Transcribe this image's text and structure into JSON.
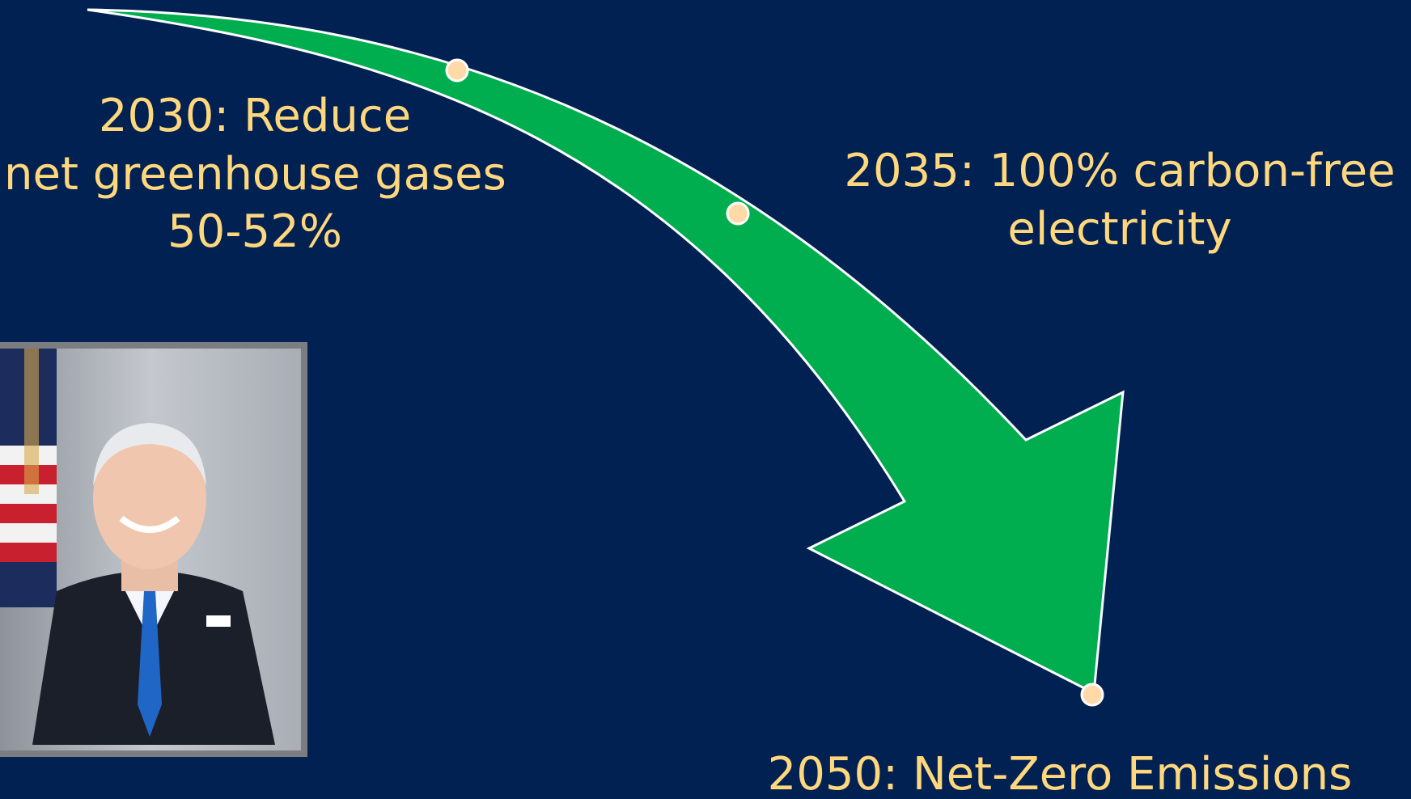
{
  "milestones": [
    {
      "lines": [
        "2030: Reduce",
        "net greenhouse gases",
        "50-52%"
      ]
    },
    {
      "lines": [
        "2035: 100%  carbon-free",
        "electricity"
      ]
    },
    {
      "lines": [
        "2050: Net-Zero Emissions"
      ]
    }
  ],
  "colors": {
    "background": "#012152",
    "arrow_fill": "#00ad4f",
    "arrow_outline": "#ffffff",
    "marker": "#ffd9a8",
    "text": "#ffd77d",
    "frame": "#7b7d80"
  },
  "portrait": {
    "description_icon": "portrait-photo"
  }
}
